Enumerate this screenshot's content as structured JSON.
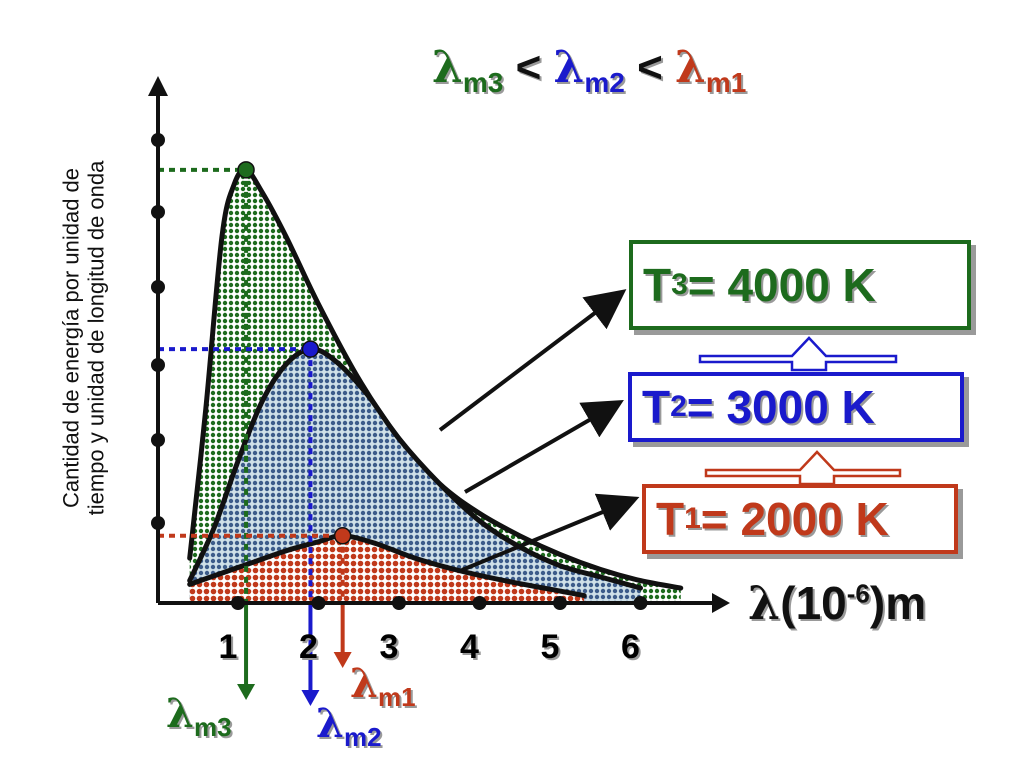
{
  "title": {
    "lambda": "λ",
    "sub3": "m3",
    "lt1": "<",
    "sub2": "m2",
    "lt2": "<",
    "sub1": "m1"
  },
  "colors": {
    "T1": "#c0391b",
    "T2": "#1a1acc",
    "T3": "#1d6b1d",
    "axis": "#111111"
  },
  "y_axis_label_line1": "Cantidad de energía por unidad de",
  "y_axis_label_line2": "tiempo y unidad de longitud de onda",
  "x_axis_label": {
    "lambda": "λ",
    "open": "(10",
    "exp": "-6",
    "close": ")m"
  },
  "temperature_boxes": [
    {
      "sym": "T",
      "sub": "3",
      "text": "= 4000 K",
      "series": "T3"
    },
    {
      "sym": "T",
      "sub": "2",
      "text": "= 3000 K",
      "series": "T2"
    },
    {
      "sym": "T",
      "sub": "1",
      "text": "= 2000 K",
      "series": "T1"
    }
  ],
  "peak_labels": {
    "m3": {
      "lambda": "λ",
      "sub": "m3"
    },
    "m2": {
      "lambda": "λ",
      "sub": "m2"
    },
    "m1": {
      "lambda": "λ",
      "sub": "m1"
    }
  },
  "chart_data": {
    "type": "area",
    "x_ticks": [
      "1",
      "2",
      "3",
      "4",
      "5",
      "6"
    ],
    "xlim": [
      0.2,
      6.5
    ],
    "ylim": [
      0,
      6.2
    ],
    "y_tick_count": 6,
    "grid": false,
    "series": [
      {
        "name": "T3= 4000 K",
        "color_key": "T3",
        "peak": [
          1.1,
          5.8
        ],
        "x": [
          0.4,
          0.6,
          0.8,
          0.95,
          1.1,
          1.3,
          1.6,
          2.0,
          2.5,
          3.0,
          3.5,
          4.0,
          4.5,
          5.0,
          5.5,
          6.0,
          6.5
        ],
        "y": [
          0.6,
          2.6,
          4.9,
          5.6,
          5.8,
          5.5,
          4.9,
          4.0,
          3.0,
          2.2,
          1.6,
          1.2,
          0.9,
          0.65,
          0.45,
          0.3,
          0.2
        ]
      },
      {
        "name": "T2= 3000 K",
        "color_key": "T2",
        "peak": [
          1.9,
          3.4
        ],
        "x": [
          0.4,
          0.7,
          1.0,
          1.3,
          1.6,
          1.9,
          2.2,
          2.6,
          3.0,
          3.5,
          4.0,
          4.5,
          5.0,
          5.5,
          6.0
        ],
        "y": [
          0.3,
          1.0,
          1.9,
          2.7,
          3.2,
          3.4,
          3.25,
          2.8,
          2.2,
          1.6,
          1.1,
          0.75,
          0.5,
          0.35,
          0.2
        ]
      },
      {
        "name": "T1= 2000 K",
        "color_key": "T1",
        "peak": [
          2.3,
          0.9
        ],
        "x": [
          0.4,
          0.8,
          1.2,
          1.6,
          2.0,
          2.3,
          2.7,
          3.2,
          3.8,
          4.4,
          5.0,
          5.3
        ],
        "y": [
          0.25,
          0.4,
          0.55,
          0.7,
          0.82,
          0.9,
          0.8,
          0.6,
          0.42,
          0.28,
          0.16,
          0.1
        ]
      }
    ],
    "peak_wavelengths": {
      "m3": 1.1,
      "m2": 1.9,
      "m1": 2.3
    }
  }
}
